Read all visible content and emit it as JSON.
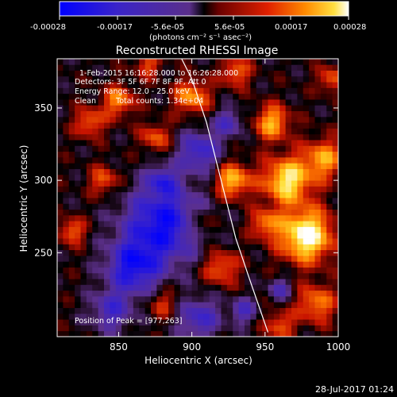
{
  "figure": {
    "title": "Reconstructed RHESSI Image",
    "footer_timestamp": "28-Jul-2017 01:24"
  },
  "colorbar": {
    "tick_labels": [
      "-0.00028",
      "-0.00017",
      "-5.6e-05",
      "5.6e-05",
      "0.00017",
      "0.00028"
    ],
    "unit_label": "(photons cm⁻² s⁻¹ asec⁻²)",
    "range": [
      -0.00028,
      0.00028
    ]
  },
  "annotations": {
    "time_range": "1-Feb-2015 16:16:28.000 to 16:26:28.000",
    "detectors": "Detectors: 3F 5F 6F 7F 8F 9F, Att 0",
    "energy_range": "Energy Range: 12.0 - 25.0 keV",
    "method": "Clean",
    "total_counts": "Total counts: 1.34e+04",
    "peak_position": "Position of Peak = [977,263]"
  },
  "chart_data": {
    "type": "heatmap",
    "title": "Reconstructed RHESSI Image",
    "xlabel": "Heliocentric X (arcsec)",
    "ylabel": "Heliocentric Y (arcsec)",
    "xlim": [
      808,
      1000
    ],
    "ylim": [
      192,
      384
    ],
    "x_ticks": [
      850,
      900,
      950,
      1000
    ],
    "y_ticks": [
      250,
      300,
      350
    ],
    "limb_curve": {
      "x": [
        893,
        900,
        910,
        920,
        930,
        940,
        952
      ],
      "y": [
        384,
        370,
        340,
        300,
        260,
        230,
        195
      ]
    },
    "peak": [
      977,
      263
    ],
    "colormap": [
      "#0000ff",
      "#4b2aa8",
      "#6a3aa8",
      "#000000",
      "#8b0000",
      "#ff3000",
      "#ff9000",
      "#ffff00",
      "#ffffff"
    ]
  }
}
